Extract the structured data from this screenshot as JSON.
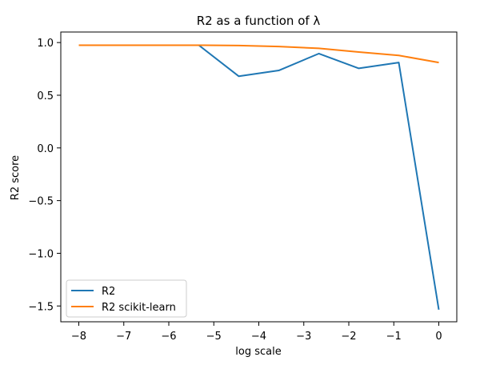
{
  "chart_data": {
    "type": "line",
    "title": "R2 as a function of λ",
    "xlabel": "log scale",
    "ylabel": "R2 score",
    "xlim": [
      -8.4,
      0.4
    ],
    "ylim": [
      -1.65,
      1.1
    ],
    "xticks": [
      -8,
      -7,
      -6,
      -5,
      -4,
      -3,
      -2,
      -1,
      0
    ],
    "xtick_labels": [
      "−8",
      "−7",
      "−6",
      "−5",
      "−4",
      "−3",
      "−2",
      "−1",
      "0"
    ],
    "yticks": [
      1.0,
      0.5,
      0.0,
      -0.5,
      -1.0,
      -1.5
    ],
    "ytick_labels": [
      "1.0",
      "0.5",
      "0.0",
      "−0.5",
      "−1.0",
      "−1.5"
    ],
    "grid": false,
    "legend_position": "lower-left",
    "x": [
      -8,
      -7.111,
      -6.222,
      -5.333,
      -4.444,
      -3.556,
      -2.667,
      -1.778,
      -0.889,
      0
    ],
    "series": [
      {
        "name": "R2",
        "color": "#1f77b4",
        "values": [
          0.975,
          0.975,
          0.975,
          0.975,
          0.68,
          0.735,
          0.895,
          0.755,
          0.81,
          -1.535
        ]
      },
      {
        "name": "R2 scikit-learn",
        "color": "#ff7f0e",
        "values": [
          0.975,
          0.975,
          0.975,
          0.975,
          0.972,
          0.962,
          0.945,
          0.91,
          0.878,
          0.81
        ]
      }
    ]
  }
}
